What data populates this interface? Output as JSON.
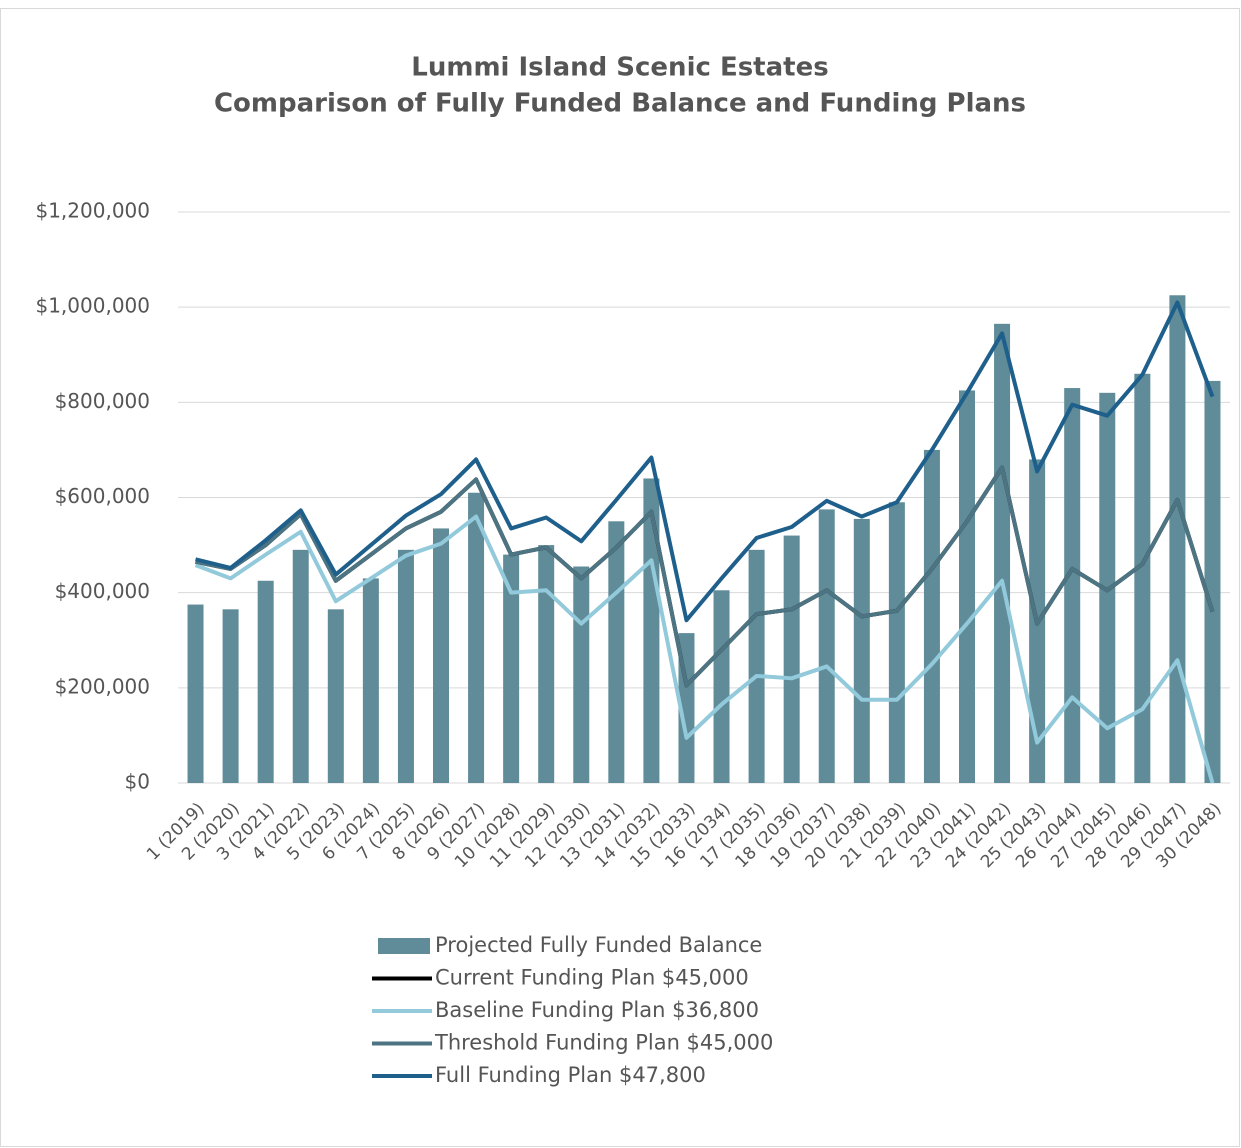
{
  "chart_data": {
    "type": "combo",
    "title": "Lummi Island Scenic Estates",
    "subtitle": "Comparison of Fully Funded Balance and Funding Plans",
    "categories": [
      "1 (2019)",
      "2 (2020)",
      "3 (2021)",
      "4 (2022)",
      "5 (2023)",
      "6 (2024)",
      "7 (2025)",
      "8 (2026)",
      "9 (2027)",
      "10 (2028)",
      "11 (2029)",
      "12 (2030)",
      "13 (2031)",
      "14 (2032)",
      "15 (2033)",
      "16 (2034)",
      "17 (2035)",
      "18 (2036)",
      "19 (2037)",
      "20 (2038)",
      "21 (2039)",
      "22 (2040)",
      "23 (2041)",
      "24 (2042)",
      "25 (2043)",
      "26 (2044)",
      "27 (2045)",
      "28 (2046)",
      "29 (2047)",
      "30 (2048)"
    ],
    "series": [
      {
        "name": "Projected Fully Funded Balance",
        "kind": "bar",
        "color": "#5f8c98",
        "values": [
          375000,
          365000,
          425000,
          490000,
          365000,
          430000,
          490000,
          535000,
          610000,
          480000,
          500000,
          455000,
          550000,
          640000,
          315000,
          405000,
          490000,
          520000,
          575000,
          555000,
          590000,
          700000,
          825000,
          965000,
          680000,
          830000,
          820000,
          860000,
          1025000,
          845000
        ]
      },
      {
        "name": "Current Funding Plan $45,000",
        "kind": "line",
        "color": "#000000",
        "values": [
          465000,
          450000,
          500000,
          565000,
          425000,
          480000,
          535000,
          570000,
          638000,
          480000,
          495000,
          430000,
          495000,
          570000,
          205000,
          280000,
          355000,
          365000,
          405000,
          350000,
          362000,
          450000,
          550000,
          663000,
          335000,
          450000,
          405000,
          460000,
          595000,
          360000
        ]
      },
      {
        "name": "Baseline Funding Plan $36,800",
        "kind": "line",
        "color": "#92cadb",
        "values": [
          458000,
          430000,
          480000,
          528000,
          382000,
          430000,
          478000,
          503000,
          560000,
          400000,
          405000,
          335000,
          400000,
          468000,
          95000,
          165000,
          225000,
          220000,
          245000,
          175000,
          175000,
          250000,
          335000,
          425000,
          85000,
          180000,
          115000,
          155000,
          258000,
          0
        ]
      },
      {
        "name": "Threshold Funding Plan $45,000",
        "kind": "line",
        "color": "#4d7482",
        "values": [
          465000,
          450000,
          500000,
          565000,
          425000,
          480000,
          535000,
          570000,
          638000,
          480000,
          495000,
          430000,
          495000,
          570000,
          205000,
          280000,
          355000,
          365000,
          405000,
          350000,
          362000,
          450000,
          550000,
          663000,
          335000,
          450000,
          405000,
          460000,
          595000,
          360000
        ]
      },
      {
        "name": "Full Funding Plan $47,800",
        "kind": "line",
        "color": "#1f5f8b",
        "values": [
          470000,
          452000,
          510000,
          573000,
          438000,
          500000,
          562000,
          607000,
          680000,
          535000,
          558000,
          508000,
          595000,
          684000,
          342000,
          430000,
          515000,
          538000,
          593000,
          560000,
          590000,
          700000,
          820000,
          945000,
          655000,
          795000,
          772000,
          858000,
          1010000,
          812000
        ]
      }
    ],
    "ylim": [
      0,
      1200000
    ],
    "yticks": [
      {
        "value": 0,
        "label": "$0"
      },
      {
        "value": 200000,
        "label": "$200,000"
      },
      {
        "value": 400000,
        "label": "$400,000"
      },
      {
        "value": 600000,
        "label": "$600,000"
      },
      {
        "value": 800000,
        "label": "$800,000"
      },
      {
        "value": 1000000,
        "label": "$1,000,000"
      },
      {
        "value": 1200000,
        "label": "$1,200,000"
      }
    ],
    "grid": true,
    "legend": "bottom"
  }
}
